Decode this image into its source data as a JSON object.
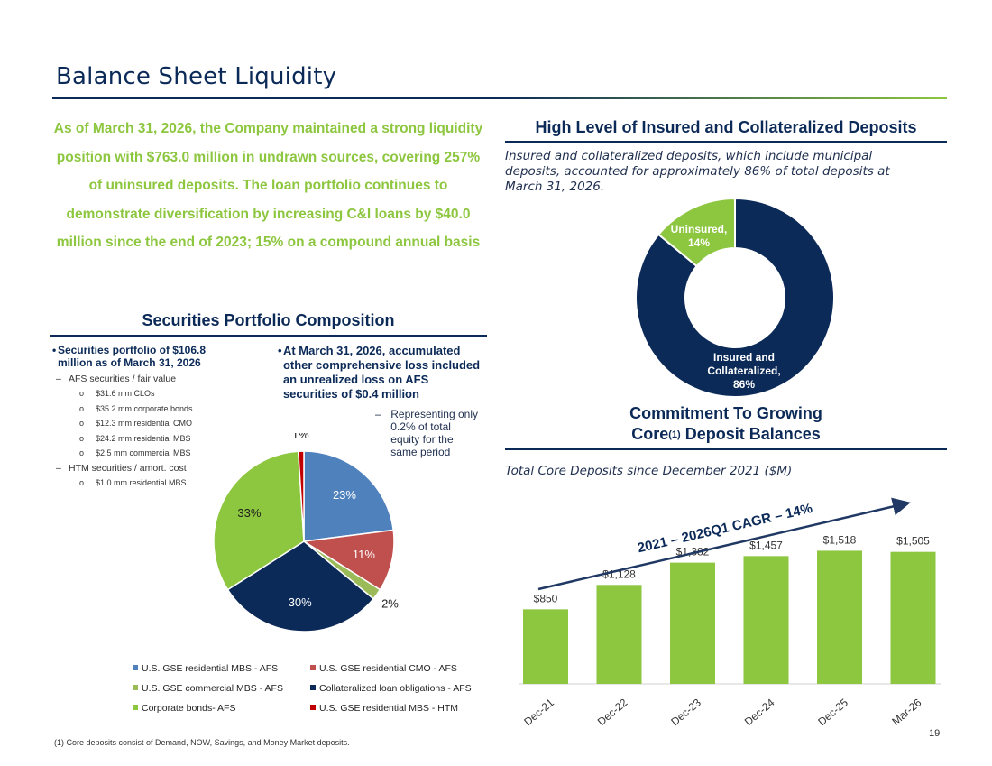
{
  "title": "Balance Sheet Liquidity",
  "intro": "As of March 31, 2026, the Company maintained a strong liquidity position with $763.0 million in undrawn sources, covering 257% of uninsured deposits. The loan portfolio continues to demonstrate diversification by increasing C&I loans by $40.0 million since the end of 2023; 15% on a compound annual basis",
  "securities": {
    "heading": "Securities Portfolio Composition",
    "bullet_main": "Securities portfolio of $106.8 million as of March 31, 2026",
    "afs_label": "AFS securities / fair value",
    "afs_items": [
      "$31.6 mm CLOs",
      "$35.2 mm corporate bonds",
      "$12.3 mm residential CMO",
      "$24.2 mm residential MBS",
      "$2.5 mm commercial MBS"
    ],
    "htm_label": "HTM securities / amort. cost",
    "htm_items": [
      "$1.0 mm residential MBS"
    ],
    "aoci_bullet": "At March 31, 2026, accumulated other comprehensive loss included an unrealized loss on AFS securities of $0.4 million",
    "aoci_sub": "Representing only 0.2% of total equity for the same period",
    "dash": "–",
    "bullet_dot": "•",
    "sub_dot": "o"
  },
  "deposits": {
    "heading": "High Level of Insured and Collateralized Deposits",
    "note": "Insured and collateralized deposits, which include municipal deposits, accounted for approximately 86% of total deposits at March 31, 2026.",
    "donut_insured_label": [
      "Insured and",
      "Collateralized,",
      "86%"
    ],
    "donut_uninsured_label": [
      "Uninsured,",
      "14%"
    ]
  },
  "core": {
    "heading_line1": "Commitment To Growing",
    "heading_line2_a": "Core",
    "heading_sup": "(1)",
    "heading_line2_b": " Deposit Balances",
    "note": "Total Core Deposits since December 2021 ($M)",
    "cagr": "2021 – 2026Q1 CAGR – 14%"
  },
  "footnote": "(1) Core deposits consist of Demand, NOW, Savings, and Money Market deposits.",
  "page_number": "19",
  "colors": {
    "navy": "#0b2a58",
    "green": "#8dc63f",
    "blue": "#4f81bd",
    "red": "#c0504d",
    "olive": "#9bbb59",
    "dark_red": "#c00000"
  },
  "chart_data": [
    {
      "type": "pie",
      "labels": [
        "U.S. GSE residential MBS - AFS",
        "U.S. GSE residential CMO - AFS",
        "U.S. GSE commercial MBS -  AFS",
        "Collateralized loan obligations - AFS",
        "Corporate bonds- AFS",
        "U.S. GSE residential MBS - HTM"
      ],
      "values": [
        23,
        11,
        2,
        30,
        33,
        1
      ],
      "value_labels": [
        "23%",
        "11%",
        "2%",
        "30%",
        "33%",
        "1%"
      ],
      "colors": [
        "#4f81bd",
        "#c0504d",
        "#9bbb59",
        "#0b2a58",
        "#8dc63f",
        "#c00000"
      ],
      "legend_position": "bottom"
    },
    {
      "type": "pie",
      "subtype": "donut",
      "labels": [
        "Insured and Collateralized",
        "Uninsured"
      ],
      "values": [
        86,
        14
      ],
      "colors": [
        "#0b2a58",
        "#8dc63f"
      ]
    },
    {
      "type": "bar",
      "categories": [
        "Dec-21",
        "Dec-22",
        "Dec-23",
        "Dec-24",
        "Dec-25",
        "Mar-26"
      ],
      "values": [
        850,
        1128,
        1382,
        1457,
        1518,
        1505
      ],
      "value_labels": [
        "$850",
        "$1,128",
        "$1,382",
        "$1,457",
        "$1,518",
        "$1,505"
      ],
      "color": "#8dc63f",
      "ylim": [
        0,
        1800
      ],
      "grid": false
    }
  ]
}
